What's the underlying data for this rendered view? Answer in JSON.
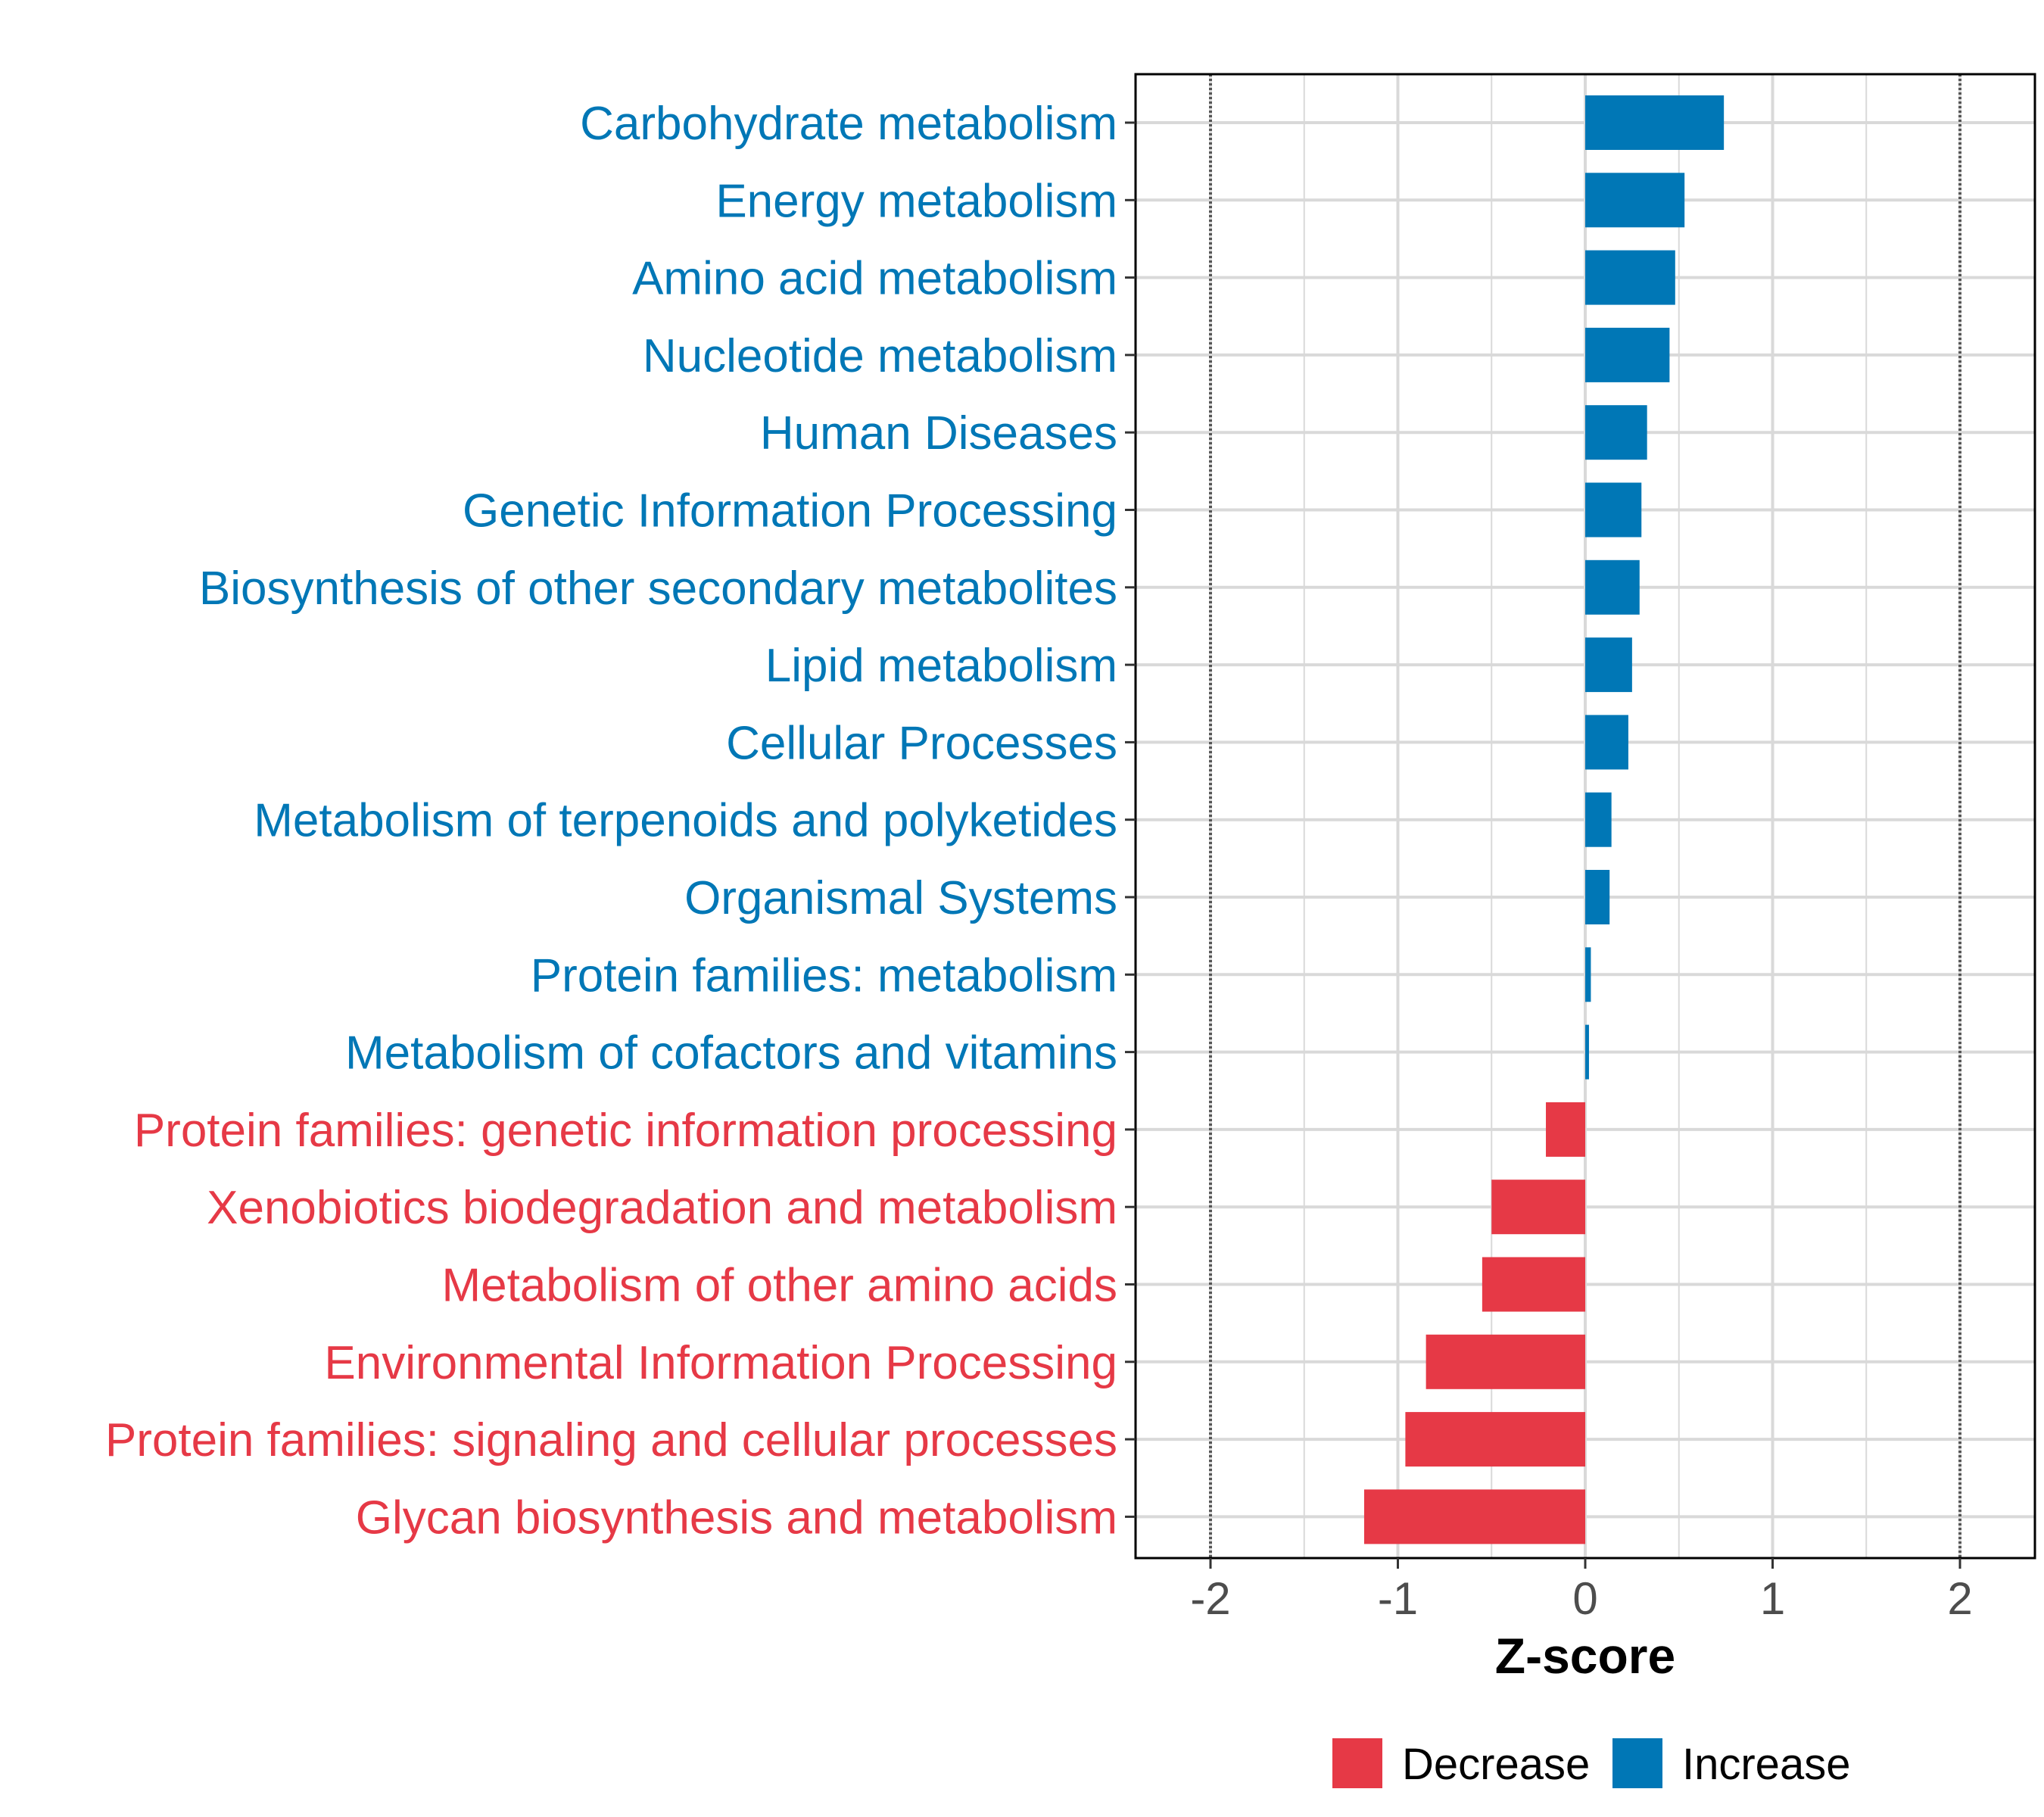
{
  "colors": {
    "increase": "#0077b6",
    "decrease": "#e63946",
    "grid": "#d9d9d9",
    "refline": "#555555"
  },
  "chart_data": {
    "type": "bar",
    "orientation": "horizontal",
    "xlabel": "Z-score",
    "xlim": [
      -2.4,
      2.4
    ],
    "xticks": [
      -2,
      -1,
      0,
      1,
      2
    ],
    "xtick_labels": [
      "-2",
      "-1",
      "0",
      "1",
      "2"
    ],
    "reference_lines": [
      -2,
      2
    ],
    "grid": true,
    "legend_position": "bottom",
    "legend": [
      {
        "key": "decrease",
        "label": "Decrease"
      },
      {
        "key": "increase",
        "label": "Increase"
      }
    ],
    "categories": [
      "Carbohydrate metabolism",
      "Energy metabolism",
      "Amino acid metabolism",
      "Nucleotide metabolism",
      "Human Diseases",
      "Genetic Information Processing",
      "Biosynthesis of other secondary metabolites",
      "Lipid metabolism",
      "Cellular Processes",
      "Metabolism of terpenoids and polyketides",
      "Organismal Systems",
      "Protein families: metabolism",
      "Metabolism of cofactors and vitamins",
      "Protein families: genetic information processing",
      "Xenobiotics biodegradation and metabolism",
      "Metabolism of other amino acids",
      "Environmental Information Processing",
      "Protein families: signaling and cellular processes",
      "Glycan biosynthesis and metabolism"
    ],
    "values": [
      0.74,
      0.53,
      0.48,
      0.45,
      0.33,
      0.3,
      0.29,
      0.25,
      0.23,
      0.14,
      0.13,
      0.03,
      0.02,
      -0.21,
      -0.5,
      -0.55,
      -0.85,
      -0.96,
      -1.18
    ],
    "groups": [
      "increase",
      "increase",
      "increase",
      "increase",
      "increase",
      "increase",
      "increase",
      "increase",
      "increase",
      "increase",
      "increase",
      "increase",
      "increase",
      "decrease",
      "decrease",
      "decrease",
      "decrease",
      "decrease",
      "decrease"
    ]
  }
}
